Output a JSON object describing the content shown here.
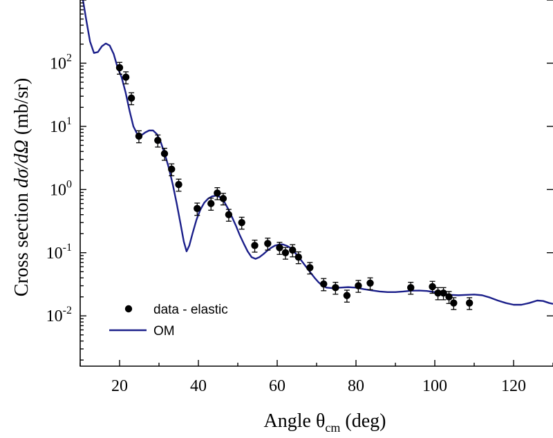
{
  "chart_data": {
    "type": "scatter",
    "title": "",
    "xlabel": {
      "prefix": "Angle θ",
      "subscript": "cm",
      "suffix": " (deg)"
    },
    "ylabel": {
      "prefix": "Cross section ",
      "italic": "dσ/dΩ",
      "suffix": " (mb/sr)"
    },
    "xlim": [
      10,
      130
    ],
    "ylim": [
      0.0016,
      1000
    ],
    "yscale": "log",
    "grid": false,
    "legend_position": "bottom-left",
    "xticks": [
      20,
      40,
      60,
      80,
      100,
      120
    ],
    "xtick_labels": [
      "20",
      "40",
      "60",
      "80",
      "100",
      "120"
    ],
    "yticks": [
      {
        "value": 100,
        "base": "10",
        "exp": "2"
      },
      {
        "value": 10,
        "base": "10",
        "exp": "1"
      },
      {
        "value": 1,
        "base": "10",
        "exp": "0"
      },
      {
        "value": 0.1,
        "base": "10",
        "exp": "-1"
      },
      {
        "value": 0.01,
        "base": "10",
        "exp": "-2"
      }
    ],
    "series": [
      {
        "name": "data - elastic",
        "kind": "points",
        "color": "#000000",
        "points": [
          {
            "x": 20.0,
            "y": 85,
            "err": 18
          },
          {
            "x": 21.6,
            "y": 60,
            "err": 13
          },
          {
            "x": 23.0,
            "y": 28,
            "err": 6
          },
          {
            "x": 24.9,
            "y": 7.0,
            "err": 1.5
          },
          {
            "x": 29.7,
            "y": 6.0,
            "err": 1.3
          },
          {
            "x": 31.4,
            "y": 3.7,
            "err": 0.8
          },
          {
            "x": 33.2,
            "y": 2.1,
            "err": 0.45
          },
          {
            "x": 35.0,
            "y": 1.2,
            "err": 0.26
          },
          {
            "x": 39.7,
            "y": 0.5,
            "err": 0.11
          },
          {
            "x": 43.2,
            "y": 0.6,
            "err": 0.13
          },
          {
            "x": 44.8,
            "y": 0.88,
            "err": 0.19
          },
          {
            "x": 46.3,
            "y": 0.72,
            "err": 0.15
          },
          {
            "x": 47.7,
            "y": 0.4,
            "err": 0.085
          },
          {
            "x": 51.0,
            "y": 0.3,
            "err": 0.064
          },
          {
            "x": 54.3,
            "y": 0.13,
            "err": 0.028
          },
          {
            "x": 57.6,
            "y": 0.14,
            "err": 0.03
          },
          {
            "x": 60.6,
            "y": 0.12,
            "err": 0.026
          },
          {
            "x": 62.1,
            "y": 0.1,
            "err": 0.021
          },
          {
            "x": 63.9,
            "y": 0.11,
            "err": 0.024
          },
          {
            "x": 65.4,
            "y": 0.085,
            "err": 0.018
          },
          {
            "x": 68.3,
            "y": 0.058,
            "err": 0.012
          },
          {
            "x": 71.8,
            "y": 0.032,
            "err": 0.007
          },
          {
            "x": 74.8,
            "y": 0.028,
            "err": 0.006
          },
          {
            "x": 77.7,
            "y": 0.021,
            "err": 0.0045
          },
          {
            "x": 80.6,
            "y": 0.03,
            "err": 0.0064
          },
          {
            "x": 83.6,
            "y": 0.033,
            "err": 0.007
          },
          {
            "x": 93.9,
            "y": 0.028,
            "err": 0.006
          },
          {
            "x": 99.4,
            "y": 0.029,
            "err": 0.0062
          },
          {
            "x": 100.8,
            "y": 0.023,
            "err": 0.005
          },
          {
            "x": 102.2,
            "y": 0.023,
            "err": 0.005
          },
          {
            "x": 103.6,
            "y": 0.02,
            "err": 0.0043
          },
          {
            "x": 104.8,
            "y": 0.016,
            "err": 0.0034
          },
          {
            "x": 108.8,
            "y": 0.016,
            "err": 0.0034
          }
        ]
      },
      {
        "name": "OM",
        "kind": "line",
        "color": "#1b1f8a",
        "points": [
          {
            "x": 10.5,
            "y": 1200
          },
          {
            "x": 11.5,
            "y": 500
          },
          {
            "x": 12.5,
            "y": 220
          },
          {
            "x": 13.5,
            "y": 145
          },
          {
            "x": 14.5,
            "y": 150
          },
          {
            "x": 15.5,
            "y": 185
          },
          {
            "x": 16.5,
            "y": 205
          },
          {
            "x": 17.5,
            "y": 190
          },
          {
            "x": 18.5,
            "y": 140
          },
          {
            "x": 19.5,
            "y": 85
          },
          {
            "x": 20.5,
            "y": 60
          },
          {
            "x": 21.5,
            "y": 35
          },
          {
            "x": 22.5,
            "y": 18
          },
          {
            "x": 23.5,
            "y": 10
          },
          {
            "x": 24.5,
            "y": 7.5
          },
          {
            "x": 25.5,
            "y": 7.2
          },
          {
            "x": 26.5,
            "y": 8.0
          },
          {
            "x": 27.5,
            "y": 8.6
          },
          {
            "x": 28.5,
            "y": 8.6
          },
          {
            "x": 29.5,
            "y": 7.5
          },
          {
            "x": 30.5,
            "y": 5.5
          },
          {
            "x": 31.5,
            "y": 3.6
          },
          {
            "x": 32.5,
            "y": 2.2
          },
          {
            "x": 33.5,
            "y": 1.2
          },
          {
            "x": 34.5,
            "y": 0.6
          },
          {
            "x": 35.5,
            "y": 0.28
          },
          {
            "x": 36.3,
            "y": 0.15
          },
          {
            "x": 37.0,
            "y": 0.105
          },
          {
            "x": 37.7,
            "y": 0.13
          },
          {
            "x": 38.5,
            "y": 0.2
          },
          {
            "x": 39.5,
            "y": 0.33
          },
          {
            "x": 40.5,
            "y": 0.48
          },
          {
            "x": 41.5,
            "y": 0.62
          },
          {
            "x": 42.5,
            "y": 0.72
          },
          {
            "x": 43.5,
            "y": 0.78
          },
          {
            "x": 44.5,
            "y": 0.8
          },
          {
            "x": 45.5,
            "y": 0.76
          },
          {
            "x": 46.5,
            "y": 0.65
          },
          {
            "x": 47.5,
            "y": 0.5
          },
          {
            "x": 48.5,
            "y": 0.37
          },
          {
            "x": 49.5,
            "y": 0.27
          },
          {
            "x": 50.5,
            "y": 0.19
          },
          {
            "x": 51.5,
            "y": 0.14
          },
          {
            "x": 52.5,
            "y": 0.105
          },
          {
            "x": 53.5,
            "y": 0.085
          },
          {
            "x": 54.5,
            "y": 0.08
          },
          {
            "x": 55.5,
            "y": 0.085
          },
          {
            "x": 56.5,
            "y": 0.095
          },
          {
            "x": 57.5,
            "y": 0.108
          },
          {
            "x": 58.5,
            "y": 0.12
          },
          {
            "x": 59.5,
            "y": 0.13
          },
          {
            "x": 60.5,
            "y": 0.135
          },
          {
            "x": 61.5,
            "y": 0.135
          },
          {
            "x": 62.5,
            "y": 0.128
          },
          {
            "x": 63.5,
            "y": 0.118
          },
          {
            "x": 64.5,
            "y": 0.1
          },
          {
            "x": 65.5,
            "y": 0.085
          },
          {
            "x": 66.5,
            "y": 0.07
          },
          {
            "x": 67.5,
            "y": 0.058
          },
          {
            "x": 68.5,
            "y": 0.048
          },
          {
            "x": 69.5,
            "y": 0.04
          },
          {
            "x": 70.5,
            "y": 0.034
          },
          {
            "x": 71.5,
            "y": 0.03
          },
          {
            "x": 72.5,
            "y": 0.028
          },
          {
            "x": 74,
            "y": 0.0275
          },
          {
            "x": 76,
            "y": 0.028
          },
          {
            "x": 78,
            "y": 0.0285
          },
          {
            "x": 80,
            "y": 0.028
          },
          {
            "x": 82,
            "y": 0.0265
          },
          {
            "x": 84,
            "y": 0.0253
          },
          {
            "x": 86,
            "y": 0.0243
          },
          {
            "x": 88,
            "y": 0.0238
          },
          {
            "x": 90,
            "y": 0.0238
          },
          {
            "x": 92,
            "y": 0.0243
          },
          {
            "x": 94,
            "y": 0.025
          },
          {
            "x": 96,
            "y": 0.0252
          },
          {
            "x": 98,
            "y": 0.0248
          },
          {
            "x": 100,
            "y": 0.0238
          },
          {
            "x": 102,
            "y": 0.0225
          },
          {
            "x": 104,
            "y": 0.0215
          },
          {
            "x": 106,
            "y": 0.0212
          },
          {
            "x": 108,
            "y": 0.0215
          },
          {
            "x": 110,
            "y": 0.0218
          },
          {
            "x": 112,
            "y": 0.0212
          },
          {
            "x": 114,
            "y": 0.0195
          },
          {
            "x": 116,
            "y": 0.0175
          },
          {
            "x": 118,
            "y": 0.016
          },
          {
            "x": 120,
            "y": 0.015
          },
          {
            "x": 122,
            "y": 0.015
          },
          {
            "x": 124,
            "y": 0.016
          },
          {
            "x": 126,
            "y": 0.0175
          },
          {
            "x": 127.5,
            "y": 0.0172
          },
          {
            "x": 129,
            "y": 0.016
          },
          {
            "x": 130,
            "y": 0.0155
          }
        ]
      }
    ]
  }
}
